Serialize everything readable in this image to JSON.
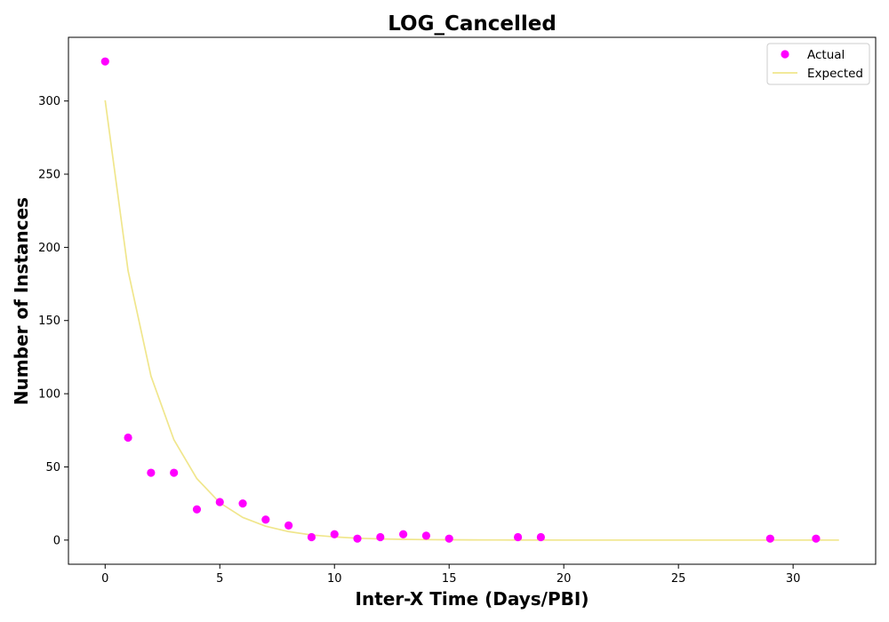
{
  "chart_data": {
    "type": "scatter",
    "title": "LOG_Cancelled",
    "xlabel": "Inter-X Time (Days/PBI)",
    "ylabel": "Number of Instances",
    "xlim": [
      -1.6,
      33.6
    ],
    "ylim": [
      -16.5,
      343.5
    ],
    "xticks": [
      0,
      5,
      10,
      15,
      20,
      25,
      30
    ],
    "yticks": [
      0,
      50,
      100,
      150,
      200,
      250,
      300
    ],
    "grid": false,
    "legend": "top-right",
    "series": [
      {
        "name": "Actual",
        "kind": "scatter",
        "color": "#ff00ff",
        "x": [
          0,
          1,
          2,
          3,
          4,
          5,
          6,
          7,
          8,
          9,
          10,
          11,
          12,
          13,
          14,
          15,
          18,
          19,
          29,
          31
        ],
        "y": [
          327,
          70,
          46,
          46,
          21,
          26,
          25,
          14,
          10,
          2,
          4,
          1,
          2,
          4,
          3,
          1,
          2,
          2,
          1,
          1
        ]
      },
      {
        "name": "Expected",
        "kind": "line",
        "color": "#f0e68c",
        "x": [
          0,
          1,
          2,
          3,
          4,
          5,
          6,
          7,
          8,
          9,
          10,
          11,
          12,
          13,
          14,
          15,
          16,
          17,
          18,
          19,
          20,
          21,
          22,
          23,
          24,
          25,
          26,
          27,
          28,
          29,
          30,
          31,
          32
        ],
        "y": [
          300.5,
          184,
          112,
          68.5,
          42,
          25.5,
          15.5,
          9.5,
          5.8,
          3.5,
          2.2,
          1.3,
          0.8,
          0.5,
          0.3,
          0.2,
          0.1,
          0.07,
          0.04,
          0.03,
          0.02,
          0.01,
          0,
          0,
          0,
          0,
          0,
          0,
          0,
          0,
          0,
          0,
          0
        ]
      }
    ]
  }
}
